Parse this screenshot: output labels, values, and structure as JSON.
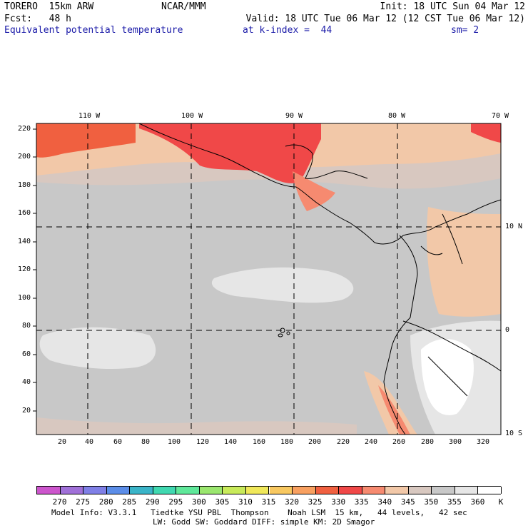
{
  "header": {
    "model": "TORERO  15km ARW",
    "center": "NCAR/MMM",
    "init": "Init: 18 UTC Sun 04 Mar 12",
    "fcst": "Fcst:   48 h",
    "valid": "Valid: 18 UTC Tue 06 Mar 12 (12 CST Tue 06 Mar 12)",
    "field": "Equivalent potential temperature",
    "level": "at k-index =  44",
    "smooth": "sm= 2"
  },
  "map": {
    "lon_labels": [
      "110 W",
      "100 W",
      "90 W",
      "80 W",
      "70 W"
    ],
    "lat_labels": [
      "10 N",
      "0",
      "10 S"
    ],
    "y_ticks": [
      "220",
      "200",
      "180",
      "160",
      "140",
      "120",
      "100",
      "80",
      "60",
      "40",
      "20"
    ],
    "x_ticks": [
      "20",
      "40",
      "60",
      "80",
      "100",
      "120",
      "140",
      "160",
      "180",
      "200",
      "220",
      "240",
      "260",
      "280",
      "300",
      "320"
    ]
  },
  "colorbar": {
    "levels": [
      "270",
      "275",
      "280",
      "285",
      "290",
      "295",
      "300",
      "305",
      "310",
      "315",
      "320",
      "325",
      "330",
      "335",
      "340",
      "345",
      "350",
      "355",
      "360"
    ],
    "unit": "K",
    "colors": [
      "#cc55cc",
      "#a070d8",
      "#7f7fe6",
      "#5b8de8",
      "#3ab4c8",
      "#40d8b0",
      "#5fe89a",
      "#9ae66e",
      "#c8ea5a",
      "#f0e85a",
      "#f8c860",
      "#f8a060",
      "#f06040",
      "#f04848",
      "#f68a70",
      "#f2c8a8",
      "#d8c8c0",
      "#c8c8c8",
      "#e6e6e6",
      "#ffffff"
    ]
  },
  "footer": {
    "line1": "Model Info: V3.3.1   Tiedtke YSU PBL  Thompson    Noah LSM  15 km,   44 levels,   42 sec",
    "line2": "LW: Godd SW: Goddard DIFF: simple KM: 2D Smagor"
  }
}
